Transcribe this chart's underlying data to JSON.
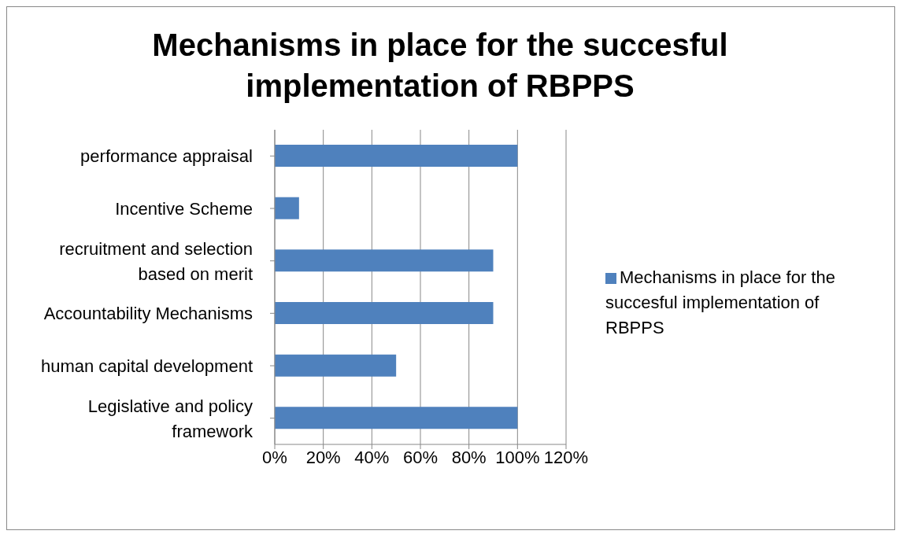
{
  "chart_data": {
    "type": "bar",
    "orientation": "horizontal",
    "title": "Mechanisms in place for the succesful implementation of RBPPS",
    "categories": [
      "performance appraisal",
      "Incentive Scheme",
      "recruitment and selection based on merit",
      "Accountability Mechanisms",
      "human capital development",
      "Legislative and policy framework"
    ],
    "series": [
      {
        "name": "Mechanisms in place for the succesful implementation of RBPPS",
        "color": "#4f81bd",
        "values": [
          100,
          10,
          90,
          90,
          50,
          100
        ]
      }
    ],
    "xlim": [
      0,
      120
    ],
    "xticks": [
      {
        "value": 0,
        "label": "0%"
      },
      {
        "value": 20,
        "label": "20%"
      },
      {
        "value": 40,
        "label": "40%"
      },
      {
        "value": 60,
        "label": "60%"
      },
      {
        "value": 80,
        "label": "80%"
      },
      {
        "value": 100,
        "label": "100%"
      },
      {
        "value": 120,
        "label": "120%"
      }
    ],
    "grid": "x",
    "legend": "right"
  }
}
